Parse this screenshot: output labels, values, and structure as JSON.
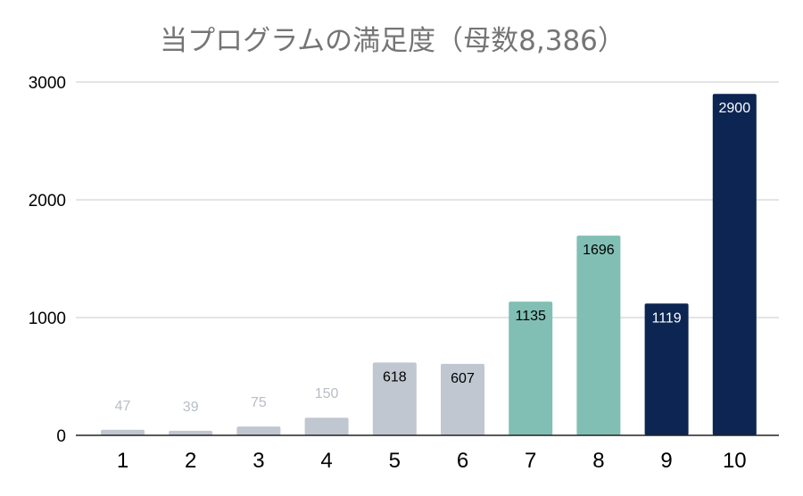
{
  "chart_data": {
    "type": "bar",
    "title": "当プログラムの満足度（母数8,386）",
    "xlabel": "",
    "ylabel": "",
    "categories": [
      "1",
      "2",
      "3",
      "4",
      "5",
      "6",
      "7",
      "8",
      "9",
      "10"
    ],
    "values": [
      47,
      39,
      75,
      150,
      618,
      607,
      1135,
      1696,
      1119,
      2900
    ],
    "data_labels": [
      "47",
      "39",
      "75",
      "150",
      "618",
      "607",
      "1135",
      "1696",
      "1119",
      "2900"
    ],
    "ylim": [
      0,
      3000
    ],
    "yticks": [
      0,
      1000,
      2000,
      3000
    ],
    "ytick_labels": [
      "0",
      "1000",
      "2000",
      "3000"
    ],
    "grid": true,
    "legend": "none",
    "bar_colors": [
      "#c0c7d0",
      "#c0c7d0",
      "#c0c7d0",
      "#c0c7d0",
      "#c0c7d0",
      "#c0c7d0",
      "#81bfb4",
      "#81bfb4",
      "#0c2552",
      "#0c2552"
    ],
    "colors": {
      "title": "#757575",
      "grid": "#c8c8c8",
      "axis": "#222222",
      "label_light": "#b8bec6",
      "label_dark": "#000000",
      "label_white": "#ffffff"
    }
  }
}
